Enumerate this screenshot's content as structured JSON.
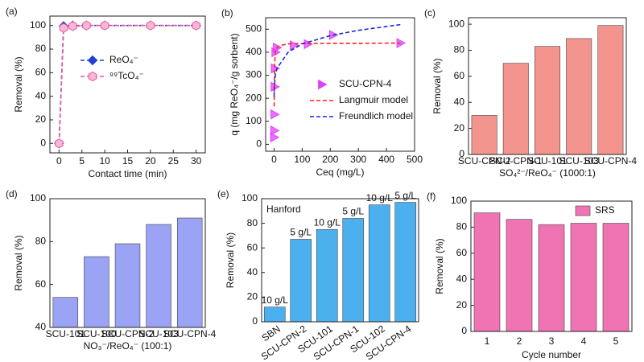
{
  "chart_data": [
    {
      "type": "line",
      "label": "(a)",
      "x_label": "Contact time (min)",
      "y_label": "Removal (%)",
      "xlim": [
        -2,
        32
      ],
      "xticks": [
        0,
        5,
        10,
        15,
        20,
        25,
        30
      ],
      "ylim": [
        -8,
        108
      ],
      "yticks": [
        0,
        20,
        40,
        60,
        80,
        100
      ],
      "series": [
        {
          "name": "ReO₄⁻",
          "color": "#1f3fd6",
          "marker": "diamond",
          "linestyle": "dashed",
          "x": [
            0,
            1,
            3,
            6,
            10,
            20,
            30
          ],
          "values": [
            0,
            99.5,
            100,
            100,
            100,
            100,
            100
          ]
        },
        {
          "name": "⁹⁹TcO₄⁻",
          "color": "#e8559c",
          "marker": "hexagon",
          "linestyle": "dashed",
          "x": [
            0,
            1,
            3,
            6,
            10,
            20,
            30
          ],
          "values": [
            0,
            98,
            99.5,
            100,
            100,
            100,
            100
          ]
        }
      ]
    },
    {
      "type": "line",
      "label": "(b)",
      "x_label": "Ceq (mg/L)",
      "y_label": "q (mg ReO₄⁻/g sorbent)",
      "xlim": [
        -30,
        500
      ],
      "xticks": [
        0,
        100,
        200,
        300,
        400,
        500
      ],
      "ylim": [
        -30,
        550
      ],
      "yticks": [
        0,
        100,
        200,
        300,
        400,
        500
      ],
      "series": [
        {
          "name": "SCU-CPN-4",
          "color": "#e040fb",
          "marker": "triangle-right",
          "linestyle": "none",
          "x": [
            0.5,
            1,
            1.5,
            2,
            3,
            5,
            10,
            70,
            120,
            210,
            450
          ],
          "values": [
            30,
            60,
            130,
            250,
            330,
            400,
            420,
            430,
            435,
            475,
            440
          ]
        },
        {
          "name": "Langmuir  model",
          "color": "#ff2020",
          "linestyle": "dashed",
          "x": [
            0.3,
            1,
            2,
            5,
            10,
            20,
            50,
            100,
            200,
            300,
            450
          ],
          "values": [
            165,
            293,
            352,
            400,
            419,
            429,
            436,
            438,
            439,
            439,
            440
          ]
        },
        {
          "name": "Freundlich model",
          "color": "#1a2bd8",
          "linestyle": "dashed",
          "x": [
            0.2,
            1,
            5,
            10,
            50,
            100,
            200,
            300,
            450
          ],
          "values": [
            206,
            250,
            303,
            330,
            400,
            436,
            472,
            495,
            520
          ]
        }
      ]
    },
    {
      "type": "bar",
      "label": "(c)",
      "x_label": "SO₄²⁻/ReO₄⁻ (1000:1)",
      "y_label": "Removal (%)",
      "categories": [
        "SCU-CPN-2",
        "SCU-CPN-1",
        "SCU-101",
        "SCU-103",
        "SCU-CPN-4"
      ],
      "ylim": [
        0,
        105
      ],
      "yticks": [
        0,
        20,
        40,
        60,
        80,
        100
      ],
      "series": [
        {
          "color": "#f4948f",
          "values": [
            30,
            70,
            83,
            89,
            99
          ]
        }
      ]
    },
    {
      "type": "bar",
      "label": "(d)",
      "x_label": "NO₃⁻/ReO₄⁻ (100:1)",
      "y_label": "Removal (%)",
      "categories": [
        "SCU-101",
        "SCU-100",
        "SCU-CPN-2",
        "SCU-103",
        "SCU-CPN-4"
      ],
      "ylim": [
        40,
        100
      ],
      "yticks": [
        40,
        60,
        80,
        100
      ],
      "series": [
        {
          "color": "#9ba3f5",
          "values": [
            54,
            73,
            79,
            88,
            91
          ]
        }
      ]
    },
    {
      "type": "bar",
      "label": "(e)",
      "y_label": "Removal (%)",
      "annotation": "Hanford",
      "categories": [
        "SBN",
        "SCU-CPN-2",
        "SCU-101",
        "SCU-CPN-1",
        "SCU-102",
        "SCU-CPN-4"
      ],
      "ylim": [
        0,
        100
      ],
      "yticks": [
        0,
        20,
        40,
        60,
        80,
        100
      ],
      "dosages": [
        "10 g/L",
        "5 g/L",
        "10 g/L",
        "5 g/L",
        "10 g/L",
        "5 g/L"
      ],
      "series": [
        {
          "color": "#4cb0ee",
          "values": [
            12,
            67,
            75,
            84,
            95,
            97
          ]
        }
      ]
    },
    {
      "type": "bar",
      "label": "(f)",
      "x_label": "Cycle number",
      "y_label": "Removal (%)",
      "categories": [
        "1",
        "2",
        "3",
        "4",
        "5"
      ],
      "ylim": [
        0,
        100
      ],
      "yticks": [
        0,
        20,
        40,
        60,
        80,
        100
      ],
      "series": [
        {
          "name": "SRS",
          "color": "#f074b4",
          "values": [
            91,
            86,
            82,
            83,
            83
          ]
        }
      ]
    }
  ]
}
